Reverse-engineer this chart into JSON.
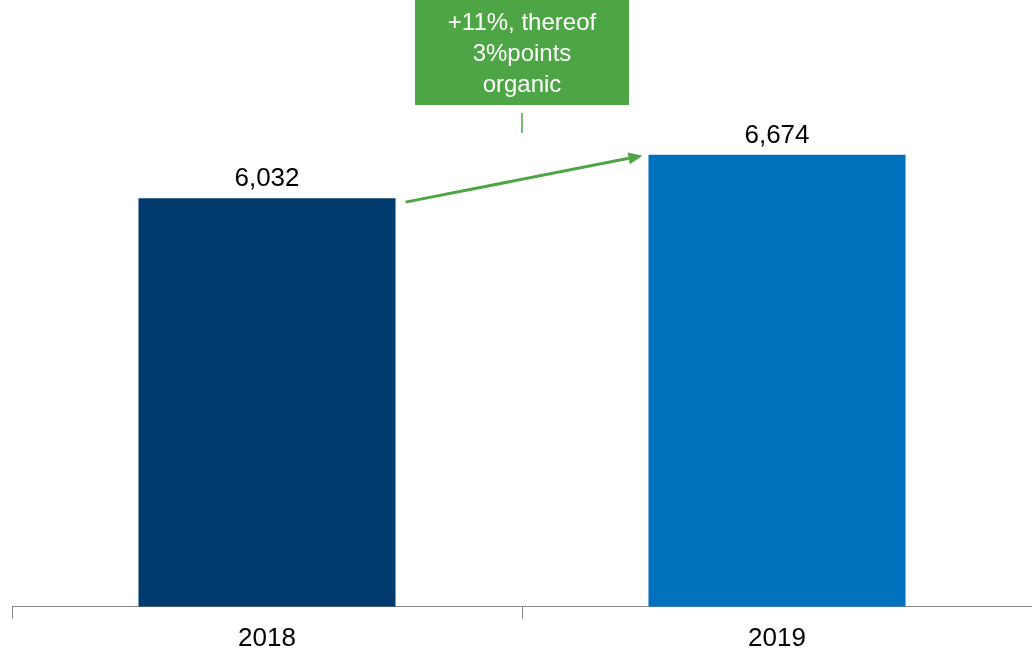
{
  "chart_data": {
    "type": "bar",
    "categories": [
      "2018",
      "2019"
    ],
    "values": [
      6032,
      6674
    ],
    "colors": [
      "#003a6e",
      "#0071bc"
    ],
    "value_labels": [
      "6,032",
      "6,674"
    ],
    "annotations": [
      "+11%, thereof\n3%points\norganic"
    ],
    "legend": false,
    "grid": false
  }
}
